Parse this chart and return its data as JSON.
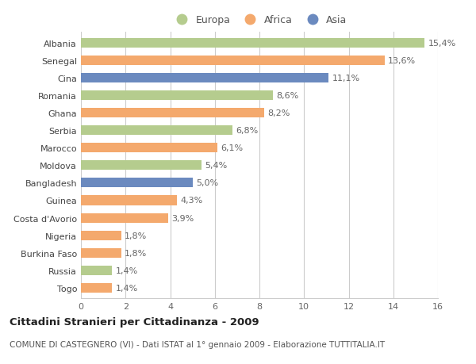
{
  "countries": [
    "Albania",
    "Senegal",
    "Cina",
    "Romania",
    "Ghana",
    "Serbia",
    "Marocco",
    "Moldova",
    "Bangladesh",
    "Guinea",
    "Costa d'Avorio",
    "Nigeria",
    "Burkina Faso",
    "Russia",
    "Togo"
  ],
  "values": [
    15.4,
    13.6,
    11.1,
    8.6,
    8.2,
    6.8,
    6.1,
    5.4,
    5.0,
    4.3,
    3.9,
    1.8,
    1.8,
    1.4,
    1.4
  ],
  "labels": [
    "15,4%",
    "13,6%",
    "11,1%",
    "8,6%",
    "8,2%",
    "6,8%",
    "6,1%",
    "5,4%",
    "5,0%",
    "4,3%",
    "3,9%",
    "1,8%",
    "1,8%",
    "1,4%",
    "1,4%"
  ],
  "continents": [
    "Europa",
    "Africa",
    "Asia",
    "Europa",
    "Africa",
    "Europa",
    "Africa",
    "Europa",
    "Asia",
    "Africa",
    "Africa",
    "Africa",
    "Africa",
    "Europa",
    "Africa"
  ],
  "colors": {
    "Europa": "#b5cc8e",
    "Africa": "#f4a96d",
    "Asia": "#6b8abf"
  },
  "xlim": [
    0,
    16
  ],
  "xticks": [
    0,
    2,
    4,
    6,
    8,
    10,
    12,
    14,
    16
  ],
  "title": "Cittadini Stranieri per Cittadinanza - 2009",
  "subtitle": "COMUNE DI CASTEGNERO (VI) - Dati ISTAT al 1° gennaio 2009 - Elaborazione TUTTITALIA.IT",
  "background_color": "#ffffff",
  "grid_color": "#cccccc",
  "bar_height": 0.55,
  "label_fontsize": 8,
  "tick_fontsize": 8,
  "title_fontsize": 9.5,
  "subtitle_fontsize": 7.5,
  "legend_categories": [
    "Europa",
    "Africa",
    "Asia"
  ]
}
